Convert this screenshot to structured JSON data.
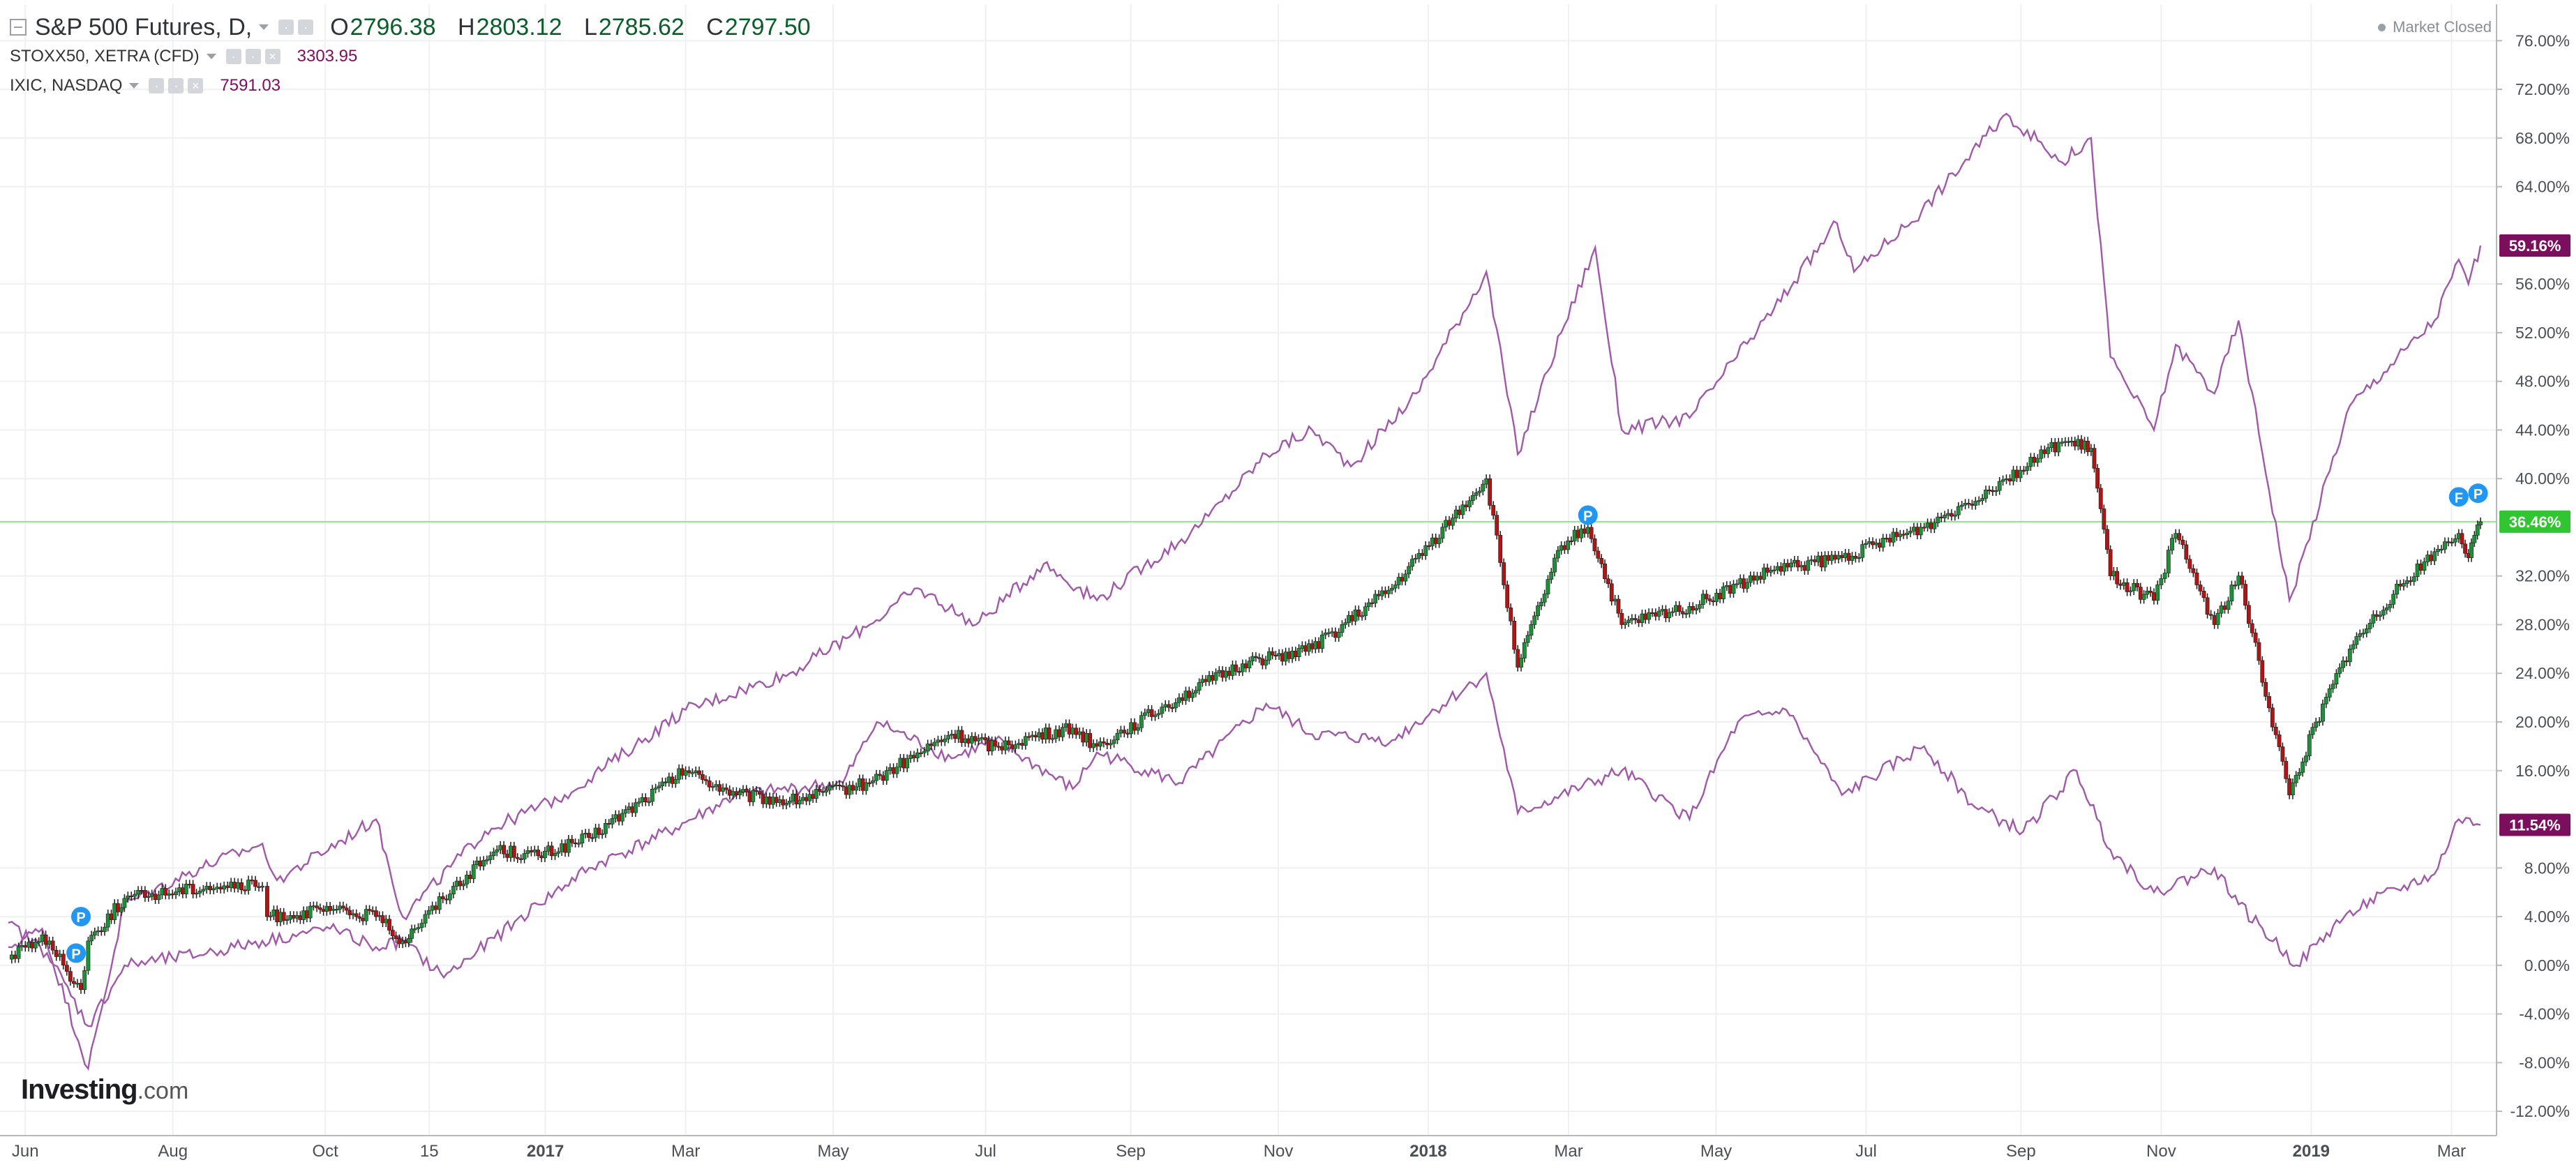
{
  "header": {
    "main_symbol": "S&P 500 Futures, D,",
    "ohlc": [
      {
        "key": "O",
        "value": "2796.38"
      },
      {
        "key": "H",
        "value": "2803.12"
      },
      {
        "key": "L",
        "value": "2785.62"
      },
      {
        "key": "C",
        "value": "2797.50"
      }
    ],
    "overlays": [
      {
        "symbol": "STOXX50, XETRA (CFD)",
        "value": "3303.95"
      },
      {
        "symbol": "IXIC, NASDAQ",
        "value": "7591.03"
      }
    ],
    "market_status": "Market Closed"
  },
  "logo": {
    "brand": "Investing",
    "suffix": ".com"
  },
  "colors": {
    "up_candle": "#1f8f3a",
    "down_candle": "#b01515",
    "overlay_line": "#a058a8",
    "price_line": "#8ee58e",
    "price_tag": "#31c531",
    "overlay_tag": "#7b0f5e",
    "event_marker": "#2196f3"
  },
  "chart_data": {
    "type": "line",
    "title": "S&P 500 Futures, D,",
    "xlabel": "",
    "ylabel": "",
    "x_unit": "date",
    "x_range": [
      "2016-05-25",
      "2019-03-13"
    ],
    "ylim": [
      -14,
      79
    ],
    "y_unit": "% change",
    "grid": true,
    "legend_position": "top-left",
    "x_ticks": [
      {
        "label": "Jun",
        "date": "2016-06-01",
        "bold": false
      },
      {
        "label": "Aug",
        "date": "2016-08-01",
        "bold": false
      },
      {
        "label": "Oct",
        "date": "2016-10-03",
        "bold": false
      },
      {
        "label": "15",
        "date": "2016-11-15",
        "bold": false
      },
      {
        "label": "2017",
        "date": "2017-01-02",
        "bold": true
      },
      {
        "label": "Mar",
        "date": "2017-03-01",
        "bold": false
      },
      {
        "label": "May",
        "date": "2017-05-01",
        "bold": false
      },
      {
        "label": "Jul",
        "date": "2017-07-03",
        "bold": false
      },
      {
        "label": "Sep",
        "date": "2017-09-01",
        "bold": false
      },
      {
        "label": "Nov",
        "date": "2017-11-01",
        "bold": false
      },
      {
        "label": "2018",
        "date": "2018-01-02",
        "bold": true
      },
      {
        "label": "Mar",
        "date": "2018-03-01",
        "bold": false
      },
      {
        "label": "May",
        "date": "2018-05-01",
        "bold": false
      },
      {
        "label": "Jul",
        "date": "2018-07-02",
        "bold": false
      },
      {
        "label": "Sep",
        "date": "2018-09-04",
        "bold": false
      },
      {
        "label": "Nov",
        "date": "2018-11-01",
        "bold": false
      },
      {
        "label": "2019",
        "date": "2019-01-02",
        "bold": true
      },
      {
        "label": "Mar",
        "date": "2019-03-01",
        "bold": false
      }
    ],
    "y_ticks": [
      {
        "value": 76,
        "label": "76.00%"
      },
      {
        "value": 72,
        "label": "72.00%"
      },
      {
        "value": 68,
        "label": "68.00%"
      },
      {
        "value": 64,
        "label": "64.00%"
      },
      {
        "value": 56,
        "label": "56.00%"
      },
      {
        "value": 52,
        "label": "52.00%"
      },
      {
        "value": 48,
        "label": "48.00%"
      },
      {
        "value": 44,
        "label": "44.00%"
      },
      {
        "value": 40,
        "label": "40.00%"
      },
      {
        "value": 32,
        "label": "32.00%"
      },
      {
        "value": 28,
        "label": "28.00%"
      },
      {
        "value": 24,
        "label": "24.00%"
      },
      {
        "value": 20,
        "label": "20.00%"
      },
      {
        "value": 16,
        "label": "16.00%"
      },
      {
        "value": 8,
        "label": "8.00%"
      },
      {
        "value": 4,
        "label": "4.00%"
      },
      {
        "value": 0,
        "label": "0.00%"
      },
      {
        "value": -4,
        "label": "-4.00%"
      },
      {
        "value": -8,
        "label": "-8.00%"
      },
      {
        "value": -12,
        "label": "-12.00%"
      }
    ],
    "last_value_tags": [
      {
        "series": "IXIC, NASDAQ",
        "value": 59.16,
        "label": "59.16%"
      },
      {
        "series": "S&P 500 Futures, D,",
        "value": 36.46,
        "label": "36.46%"
      },
      {
        "series": "STOXX50, XETRA (CFD)",
        "value": 11.54,
        "label": "11.54%"
      }
    ],
    "current_price_line": 36.46,
    "series": [
      {
        "name": "S&P 500 Futures, D,",
        "style": "candlestick",
        "x": [
          "2016-05-25",
          "2016-06-08",
          "2016-06-24",
          "2016-06-27",
          "2016-07-12",
          "2016-08-15",
          "2016-09-07",
          "2016-09-09",
          "2016-10-05",
          "2016-10-24",
          "2016-11-04",
          "2016-11-09",
          "2016-11-25",
          "2016-12-13",
          "2016-12-30",
          "2017-01-20",
          "2017-03-01",
          "2017-03-22",
          "2017-04-13",
          "2017-05-16",
          "2017-06-19",
          "2017-07-07",
          "2017-08-08",
          "2017-08-18",
          "2017-09-21",
          "2017-10-20",
          "2017-11-15",
          "2017-12-18",
          "2018-01-26",
          "2018-02-08",
          "2018-02-26",
          "2018-03-09",
          "2018-03-23",
          "2018-04-20",
          "2018-05-25",
          "2018-06-22",
          "2018-07-26",
          "2018-08-29",
          "2018-09-21",
          "2018-10-03",
          "2018-10-11",
          "2018-10-29",
          "2018-11-07",
          "2018-11-23",
          "2018-12-03",
          "2018-12-24",
          "2019-01-04",
          "2019-01-18",
          "2019-02-05",
          "2019-02-22",
          "2019-03-04",
          "2019-03-08",
          "2019-03-13"
        ],
        "y": [
          0.5,
          2.5,
          -2.0,
          2.0,
          5.5,
          6.5,
          6.5,
          4.0,
          4.5,
          4.0,
          2.0,
          3.0,
          6.5,
          9.5,
          9.0,
          10.5,
          16.0,
          14.0,
          13.5,
          15.0,
          19.0,
          18.0,
          19.5,
          18.0,
          22.0,
          25.0,
          26.0,
          31.0,
          40.0,
          24.5,
          34.5,
          36.0,
          28.0,
          29.5,
          32.5,
          33.5,
          36.0,
          40.0,
          43.0,
          42.5,
          32.0,
          30.0,
          35.5,
          28.0,
          32.0,
          14.0,
          20.0,
          26.0,
          30.5,
          34.0,
          35.5,
          33.5,
          36.46
        ]
      },
      {
        "name": "IXIC, NASDAQ",
        "style": "line",
        "x": [
          "2016-05-25",
          "2016-06-08",
          "2016-06-27",
          "2016-07-12",
          "2016-08-12",
          "2016-09-07",
          "2016-09-13",
          "2016-10-24",
          "2016-11-04",
          "2016-12-08",
          "2017-01-10",
          "2017-03-01",
          "2017-04-13",
          "2017-05-16",
          "2017-06-05",
          "2017-06-29",
          "2017-07-27",
          "2017-08-18",
          "2017-09-29",
          "2017-10-27",
          "2017-11-15",
          "2017-12-01",
          "2017-12-28",
          "2018-01-26",
          "2018-02-08",
          "2018-02-26",
          "2018-03-12",
          "2018-03-23",
          "2018-04-20",
          "2018-05-25",
          "2018-06-20",
          "2018-06-27",
          "2018-07-25",
          "2018-08-29",
          "2018-09-21",
          "2018-10-03",
          "2018-10-11",
          "2018-10-29",
          "2018-11-07",
          "2018-11-23",
          "2018-12-03",
          "2018-12-24",
          "2019-01-18",
          "2019-02-22",
          "2019-03-04",
          "2019-03-08",
          "2019-03-13"
        ],
        "y": [
          1.5,
          3.0,
          -8.5,
          5.0,
          8.0,
          10.0,
          7.0,
          12.0,
          4.0,
          11.0,
          14.0,
          21.0,
          24.0,
          28.0,
          31.0,
          28.0,
          33.0,
          30.0,
          36.0,
          42.0,
          44.0,
          41.0,
          47.0,
          57.0,
          42.0,
          52.0,
          59.0,
          44.0,
          45.0,
          54.0,
          61.0,
          57.0,
          62.0,
          70.0,
          66.0,
          68.0,
          50.0,
          44.0,
          51.0,
          47.0,
          53.0,
          30.0,
          46.0,
          53.0,
          58.0,
          56.0,
          59.16
        ]
      },
      {
        "name": "STOXX50, XETRA (CFD)",
        "style": "line",
        "x": [
          "2016-05-25",
          "2016-06-10",
          "2016-06-27",
          "2016-07-12",
          "2016-08-15",
          "2016-09-07",
          "2016-10-05",
          "2016-10-24",
          "2016-11-04",
          "2016-11-21",
          "2016-12-30",
          "2017-01-20",
          "2017-02-22",
          "2017-03-22",
          "2017-05-05",
          "2017-05-19",
          "2017-06-19",
          "2017-07-07",
          "2017-08-08",
          "2017-08-18",
          "2017-09-21",
          "2017-10-27",
          "2017-11-15",
          "2017-12-18",
          "2018-01-26",
          "2018-02-08",
          "2018-03-23",
          "2018-04-20",
          "2018-05-10",
          "2018-05-30",
          "2018-06-22",
          "2018-07-26",
          "2018-08-16",
          "2018-09-05",
          "2018-09-27",
          "2018-10-11",
          "2018-10-29",
          "2018-11-23",
          "2018-12-03",
          "2018-12-27",
          "2019-01-18",
          "2019-02-22",
          "2019-03-04",
          "2019-03-13"
        ],
        "y": [
          3.5,
          1.0,
          -5.0,
          0.0,
          1.0,
          2.0,
          3.0,
          1.5,
          2.0,
          -1.0,
          5.0,
          8.0,
          11.0,
          14.0,
          15.0,
          20.0,
          17.0,
          18.5,
          14.5,
          17.5,
          15.0,
          21.5,
          19.0,
          18.5,
          24.0,
          12.5,
          16.0,
          12.0,
          20.0,
          21.0,
          14.0,
          18.0,
          13.0,
          11.0,
          16.0,
          9.5,
          6.0,
          8.0,
          5.0,
          0.0,
          4.5,
          7.5,
          12.0,
          11.54
        ]
      }
    ],
    "event_markers": [
      {
        "date": "2016-06-24",
        "value": 4.0,
        "label": "P"
      },
      {
        "date": "2016-06-22",
        "value": 1.0,
        "label": "P"
      },
      {
        "date": "2018-03-09",
        "value": 37.0,
        "label": "P"
      },
      {
        "date": "2019-03-04",
        "value": 38.5,
        "label": "F"
      },
      {
        "date": "2019-03-12",
        "value": 38.8,
        "label": "P"
      }
    ]
  }
}
